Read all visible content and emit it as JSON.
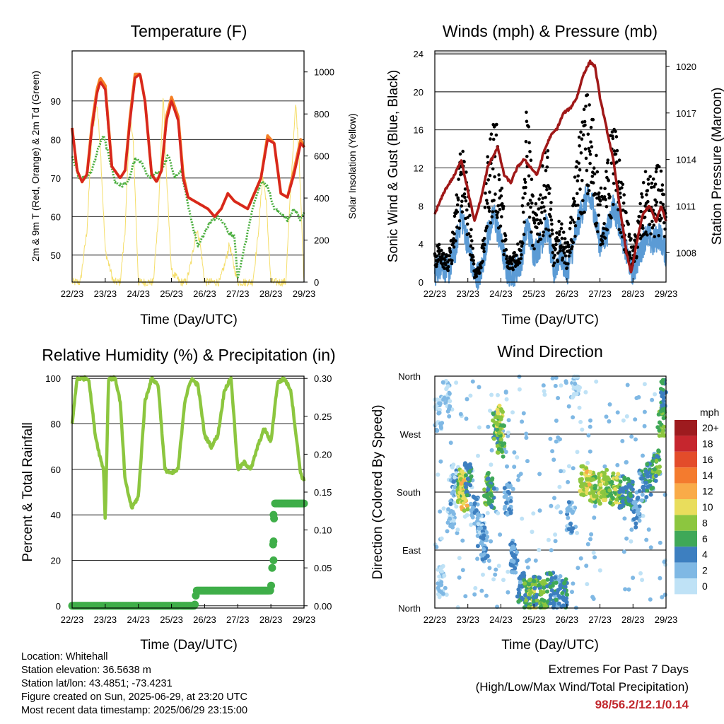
{
  "colors": {
    "temp2m": "#d7261e",
    "temp9m": "#f57f25",
    "dew": "#4aae3e",
    "solar": "#f5de6a",
    "wind": "#5b9bd5",
    "gust": "#000000",
    "pressure": "#a01818",
    "rh": "#8cc63f",
    "precip": "#3fae49",
    "extremes": "#c1272d"
  },
  "chart_data": [
    {
      "type": "line",
      "title": "Temperature (F)",
      "xlabel": "Time (Day/UTC)",
      "ylabel": "2m & 9m T (Red, Orange) & 2m Td (Green)",
      "ylabel_right": "Solar Insolation (Yellow)",
      "x_ticks": [
        "22/23",
        "23/23",
        "24/23",
        "25/23",
        "26/23",
        "27/23",
        "28/23",
        "29/23"
      ],
      "ylim": [
        43,
        103
      ],
      "y_ticks": [
        50,
        60,
        70,
        80,
        90
      ],
      "ylim_right": [
        0,
        1100
      ],
      "y_ticks_right": [
        0,
        200,
        400,
        600,
        800,
        1000
      ],
      "grid": true,
      "series": [
        {
          "name": "2m T",
          "x_days": [
            0,
            0.15,
            0.3,
            0.45,
            0.6,
            0.75,
            0.85,
            1.0,
            1.2,
            1.45,
            1.6,
            1.75,
            1.9,
            2.05,
            2.2,
            2.4,
            2.55,
            2.7,
            2.85,
            3.0,
            3.2,
            3.35,
            3.5,
            3.7,
            3.9,
            4.1,
            4.3,
            4.5,
            4.7,
            4.9,
            5.1,
            5.3,
            5.5,
            5.7,
            5.9,
            6.1,
            6.3,
            6.5,
            6.7,
            6.9,
            7.0
          ],
          "values": [
            83,
            72,
            69,
            71,
            83,
            92,
            95,
            93,
            73,
            70,
            72,
            85,
            96,
            97,
            90,
            71,
            69,
            72,
            85,
            90,
            85,
            70,
            65,
            64,
            63,
            62,
            60,
            62,
            66,
            64,
            63,
            62,
            66,
            70,
            80,
            79,
            66,
            65,
            71,
            79,
            78
          ]
        },
        {
          "name": "9m T",
          "x_days": [
            0,
            0.15,
            0.3,
            0.45,
            0.6,
            0.75,
            0.85,
            1.0,
            1.2,
            1.45,
            1.6,
            1.75,
            1.9,
            2.05,
            2.2,
            2.4,
            2.55,
            2.7,
            2.85,
            3.0,
            3.2,
            3.35,
            3.5,
            3.7,
            3.9,
            4.1,
            4.3,
            4.5,
            4.7,
            4.9,
            5.1,
            5.3,
            5.5,
            5.7,
            5.9,
            6.1,
            6.3,
            6.5,
            6.7,
            6.9,
            7.0
          ],
          "values": [
            83,
            72,
            69,
            71,
            84,
            93,
            96,
            94,
            73,
            70,
            72,
            86,
            97,
            97,
            90,
            71,
            69,
            72,
            86,
            91,
            86,
            71,
            65,
            64,
            63,
            62,
            60,
            62,
            66,
            64,
            63,
            62,
            66,
            70,
            81,
            79,
            66,
            65,
            72,
            80,
            78
          ]
        },
        {
          "name": "2m Td",
          "x_days": [
            0,
            0.2,
            0.4,
            0.6,
            0.8,
            0.95,
            1.1,
            1.3,
            1.5,
            1.7,
            1.9,
            2.1,
            2.3,
            2.5,
            2.7,
            2.9,
            3.1,
            3.3,
            3.5,
            3.6,
            3.8,
            4.0,
            4.2,
            4.4,
            4.6,
            4.7,
            4.9,
            5.0,
            5.2,
            5.4,
            5.5,
            5.7,
            5.9,
            6.1,
            6.3,
            6.5,
            6.7,
            6.9,
            7.0
          ],
          "values": [
            76,
            70,
            70,
            72,
            78,
            81,
            76,
            69,
            68,
            69,
            75,
            74,
            70,
            71,
            72,
            76,
            70,
            72,
            63,
            59,
            52,
            56,
            59,
            60,
            58,
            56,
            55,
            44,
            52,
            60,
            64,
            69,
            68,
            62,
            61,
            59,
            62,
            59,
            61
          ]
        },
        {
          "name": "Solar",
          "axis": "right",
          "x_days": [
            0,
            0.25,
            0.45,
            0.6,
            0.75,
            0.85,
            1.0,
            1.25,
            1.45,
            1.6,
            1.75,
            1.85,
            2.0,
            2.25,
            2.45,
            2.6,
            2.75,
            2.85,
            3.0,
            3.25,
            3.45,
            3.6,
            3.75,
            3.85,
            4.0,
            4.25,
            4.45,
            4.6,
            4.75,
            4.85,
            5.0,
            5.25,
            5.45,
            5.6,
            5.75,
            5.85,
            6.0,
            6.25,
            6.45,
            6.6,
            6.75,
            6.85,
            7.0
          ],
          "values": [
            0,
            0,
            250,
            700,
            850,
            650,
            150,
            0,
            0,
            250,
            800,
            650,
            0,
            0,
            0,
            300,
            900,
            500,
            50,
            0,
            0,
            100,
            250,
            200,
            0,
            0,
            0,
            80,
            180,
            100,
            0,
            0,
            0,
            200,
            500,
            400,
            0,
            0,
            0,
            450,
            850,
            600,
            0
          ]
        }
      ]
    },
    {
      "type": "line",
      "title": "Winds (mph) & Pressure (mb)",
      "xlabel": "Time (Day/UTC)",
      "ylabel": "Sonic Wind & Gust (Blue, Black)",
      "ylabel_right": "Station Pressure (Maroon)",
      "x_ticks": [
        "22/23",
        "23/23",
        "24/23",
        "25/23",
        "26/23",
        "27/23",
        "28/23",
        "29/23"
      ],
      "ylim": [
        0,
        24.3
      ],
      "y_ticks": [
        0,
        4,
        8,
        12,
        16,
        20,
        24
      ],
      "ylim_right": [
        1006.1,
        1021.0
      ],
      "y_ticks_right": [
        1008,
        1011,
        1014,
        1017,
        1020
      ],
      "grid": true,
      "series": [
        {
          "name": "Gust",
          "x_days": [
            0,
            0.2,
            0.4,
            0.6,
            0.8,
            1.0,
            1.2,
            1.4,
            1.6,
            1.8,
            2.0,
            2.2,
            2.4,
            2.6,
            2.8,
            3.0,
            3.2,
            3.4,
            3.6,
            3.8,
            4.0,
            4.2,
            4.4,
            4.6,
            4.8,
            5.0,
            5.2,
            5.4,
            5.6,
            5.8,
            6.0,
            6.2,
            6.4,
            6.6,
            6.8,
            7.0
          ],
          "values": [
            3,
            4,
            2,
            6,
            14,
            9,
            1,
            2,
            11,
            16,
            10,
            2,
            3,
            4,
            17,
            6,
            9,
            13,
            3,
            6,
            3,
            8,
            14,
            17,
            15,
            8,
            10,
            15,
            11,
            6,
            3,
            7,
            10,
            9,
            11,
            6
          ]
        },
        {
          "name": "Wind",
          "x_days": [
            0,
            0.2,
            0.4,
            0.6,
            0.8,
            1.0,
            1.2,
            1.4,
            1.6,
            1.8,
            2.0,
            2.2,
            2.4,
            2.6,
            2.8,
            3.0,
            3.2,
            3.4,
            3.6,
            3.8,
            4.0,
            4.2,
            4.4,
            4.6,
            4.8,
            5.0,
            5.2,
            5.4,
            5.6,
            5.8,
            6.0,
            6.2,
            6.4,
            6.6,
            6.8,
            7.0
          ],
          "values": [
            1,
            2,
            1,
            3,
            7,
            4,
            0.5,
            1,
            5,
            7,
            4,
            1,
            1,
            2,
            6,
            3,
            4,
            6,
            1,
            3,
            1,
            4,
            7,
            9,
            8,
            4,
            5,
            8,
            6,
            3,
            1,
            3,
            5,
            4,
            5,
            3
          ]
        },
        {
          "name": "Pressure",
          "axis": "right",
          "x_days": [
            0,
            0.3,
            0.6,
            0.8,
            1.0,
            1.2,
            1.4,
            1.6,
            1.9,
            2.1,
            2.3,
            2.5,
            2.7,
            2.9,
            3.1,
            3.3,
            3.5,
            3.7,
            3.9,
            4.1,
            4.3,
            4.5,
            4.7,
            4.85,
            5.0,
            5.2,
            5.4,
            5.6,
            5.8,
            5.95,
            6.1,
            6.3,
            6.5,
            6.7,
            6.85,
            7.0
          ],
          "values": [
            1010.5,
            1012,
            1013,
            1014,
            1012,
            1010,
            1011.5,
            1013.5,
            1014.8,
            1013,
            1012.5,
            1013.5,
            1014,
            1013.5,
            1013,
            1014.5,
            1015.5,
            1016,
            1017,
            1017.3,
            1018,
            1019.5,
            1020.3,
            1020,
            1018,
            1016,
            1014,
            1011,
            1008,
            1006.7,
            1008.5,
            1010.5,
            1011,
            1010,
            1011,
            1010
          ]
        }
      ]
    },
    {
      "type": "line",
      "title": "Relative Humidity (%) & Precipitation (in)",
      "xlabel": "Time (Day/UTC)",
      "ylabel": "Percent & Total Rainfall",
      "x_ticks": [
        "22/23",
        "23/23",
        "24/23",
        "25/23",
        "26/23",
        "27/23",
        "28/23",
        "29/23"
      ],
      "ylim": [
        -1,
        101
      ],
      "y_ticks": [
        0,
        20,
        40,
        60,
        80,
        100
      ],
      "ylim_right": [
        -0.003,
        0.303
      ],
      "y_ticks_right": [
        "0.00",
        "0.05",
        "0.10",
        "0.15",
        "0.20",
        "0.25",
        "0.30"
      ],
      "grid": true,
      "series": [
        {
          "name": "RH",
          "x_days": [
            0,
            0.15,
            0.3,
            0.5,
            0.7,
            0.85,
            0.95,
            1.0,
            1.1,
            1.3,
            1.45,
            1.6,
            1.8,
            2.0,
            2.2,
            2.4,
            2.6,
            2.8,
            3.0,
            3.2,
            3.4,
            3.6,
            3.8,
            4.0,
            4.2,
            4.4,
            4.6,
            4.8,
            5.0,
            5.2,
            5.4,
            5.6,
            5.8,
            6.0,
            6.2,
            6.4,
            6.6,
            6.8,
            6.9,
            7.0
          ],
          "values": [
            80,
            100,
            100,
            100,
            75,
            65,
            60,
            37,
            100,
            100,
            90,
            55,
            43,
            48,
            90,
            100,
            97,
            60,
            58,
            60,
            90,
            100,
            97,
            75,
            70,
            75,
            95,
            100,
            60,
            63,
            60,
            70,
            78,
            72,
            98,
            100,
            95,
            70,
            58,
            55
          ]
        },
        {
          "name": "Precipitation",
          "axis": "right",
          "x_days": [
            0,
            3.7,
            3.75,
            3.8,
            6.0,
            6.05,
            6.07,
            6.1,
            6.12,
            7.0
          ],
          "values": [
            0,
            0,
            0.02,
            0.02,
            0.02,
            0.06,
            0.085,
            0.12,
            0.135,
            0.135
          ]
        }
      ]
    },
    {
      "type": "scatter",
      "title": "Wind Direction",
      "xlabel": "Time (Day/UTC)",
      "ylabel": "Direction (Colored By Speed)",
      "x_ticks": [
        "22/23",
        "23/23",
        "24/23",
        "25/23",
        "26/23",
        "27/23",
        "28/23",
        "29/23"
      ],
      "y_ticks": [
        "North",
        "East",
        "South",
        "West",
        "North"
      ],
      "ylim": [
        0,
        360
      ],
      "grid": true,
      "legend": {
        "title": "mph",
        "labels": [
          "20+",
          "18",
          "16",
          "14",
          "12",
          "10",
          "8",
          "6",
          "4",
          "2",
          "0"
        ],
        "colors": [
          "#9e1b1f",
          "#c6262e",
          "#e34c2a",
          "#f47b2e",
          "#f9ab48",
          "#e9dd5c",
          "#8cc63f",
          "#3fa858",
          "#3d7fc0",
          "#7fb8e4",
          "#bfe2f6"
        ]
      },
      "clusters": [
        {
          "x": 0.1,
          "dir": 300,
          "spd": 1
        },
        {
          "x": 0.2,
          "dir": 40,
          "spd": 1
        },
        {
          "x": 0.35,
          "dir": 330,
          "spd": 1
        },
        {
          "x": 0.5,
          "dir": 150,
          "spd": 2
        },
        {
          "x": 0.6,
          "dir": 200,
          "spd": 2
        },
        {
          "x": 0.8,
          "dir": 185,
          "spd": 8
        },
        {
          "x": 0.85,
          "dir": 190,
          "spd": 9
        },
        {
          "x": 0.9,
          "dir": 175,
          "spd": 10
        },
        {
          "x": 1.0,
          "dir": 200,
          "spd": 5
        },
        {
          "x": 1.2,
          "dir": 150,
          "spd": 3
        },
        {
          "x": 1.4,
          "dir": 120,
          "spd": 2
        },
        {
          "x": 1.5,
          "dir": 100,
          "spd": 3
        },
        {
          "x": 1.6,
          "dir": 185,
          "spd": 7
        },
        {
          "x": 1.7,
          "dir": 180,
          "spd": 5
        },
        {
          "x": 1.85,
          "dir": 280,
          "spd": 6
        },
        {
          "x": 1.95,
          "dir": 290,
          "spd": 9
        },
        {
          "x": 2.0,
          "dir": 260,
          "spd": 7
        },
        {
          "x": 2.2,
          "dir": 170,
          "spd": 3
        },
        {
          "x": 2.4,
          "dir": 80,
          "spd": 3
        },
        {
          "x": 2.6,
          "dir": 30,
          "spd": 4
        },
        {
          "x": 2.8,
          "dir": 20,
          "spd": 6
        },
        {
          "x": 2.95,
          "dir": 15,
          "spd": 8
        },
        {
          "x": 3.1,
          "dir": 25,
          "spd": 6
        },
        {
          "x": 3.3,
          "dir": 20,
          "spd": 7
        },
        {
          "x": 3.5,
          "dir": 30,
          "spd": 5
        },
        {
          "x": 3.7,
          "dir": 25,
          "spd": 4
        },
        {
          "x": 3.9,
          "dir": 20,
          "spd": 5
        },
        {
          "x": 4.1,
          "dir": 140,
          "spd": 2
        },
        {
          "x": 4.3,
          "dir": 350,
          "spd": 1
        },
        {
          "x": 4.5,
          "dir": 200,
          "spd": 9
        },
        {
          "x": 4.7,
          "dir": 190,
          "spd": 10
        },
        {
          "x": 4.9,
          "dir": 185,
          "spd": 8
        },
        {
          "x": 5.1,
          "dir": 190,
          "spd": 9
        },
        {
          "x": 5.3,
          "dir": 180,
          "spd": 7
        },
        {
          "x": 5.5,
          "dir": 185,
          "spd": 8
        },
        {
          "x": 5.7,
          "dir": 180,
          "spd": 5
        },
        {
          "x": 5.9,
          "dir": 175,
          "spd": 5
        },
        {
          "x": 6.1,
          "dir": 150,
          "spd": 3
        },
        {
          "x": 6.3,
          "dir": 190,
          "spd": 4
        },
        {
          "x": 6.5,
          "dir": 200,
          "spd": 5
        },
        {
          "x": 6.7,
          "dir": 220,
          "spd": 6
        },
        {
          "x": 6.85,
          "dir": 290,
          "spd": 7
        },
        {
          "x": 6.95,
          "dir": 330,
          "spd": 5
        }
      ]
    }
  ],
  "footer": {
    "location": "Location: Whitehall",
    "elevation": "Station elevation: 36.5638 m",
    "latlon": "Station lat/lon: 43.4851; -73.4231",
    "created": "Figure created on Sun, 2025-06-29, at 23:20 UTC",
    "recent": "Most recent data timestamp: 2025/06/29 23:15:00"
  },
  "extremes": {
    "title": "Extremes For Past 7 Days",
    "subtitle": "(High/Low/Max Wind/Total Precipitation)",
    "values": "98/56.2/12.1/0.14"
  }
}
